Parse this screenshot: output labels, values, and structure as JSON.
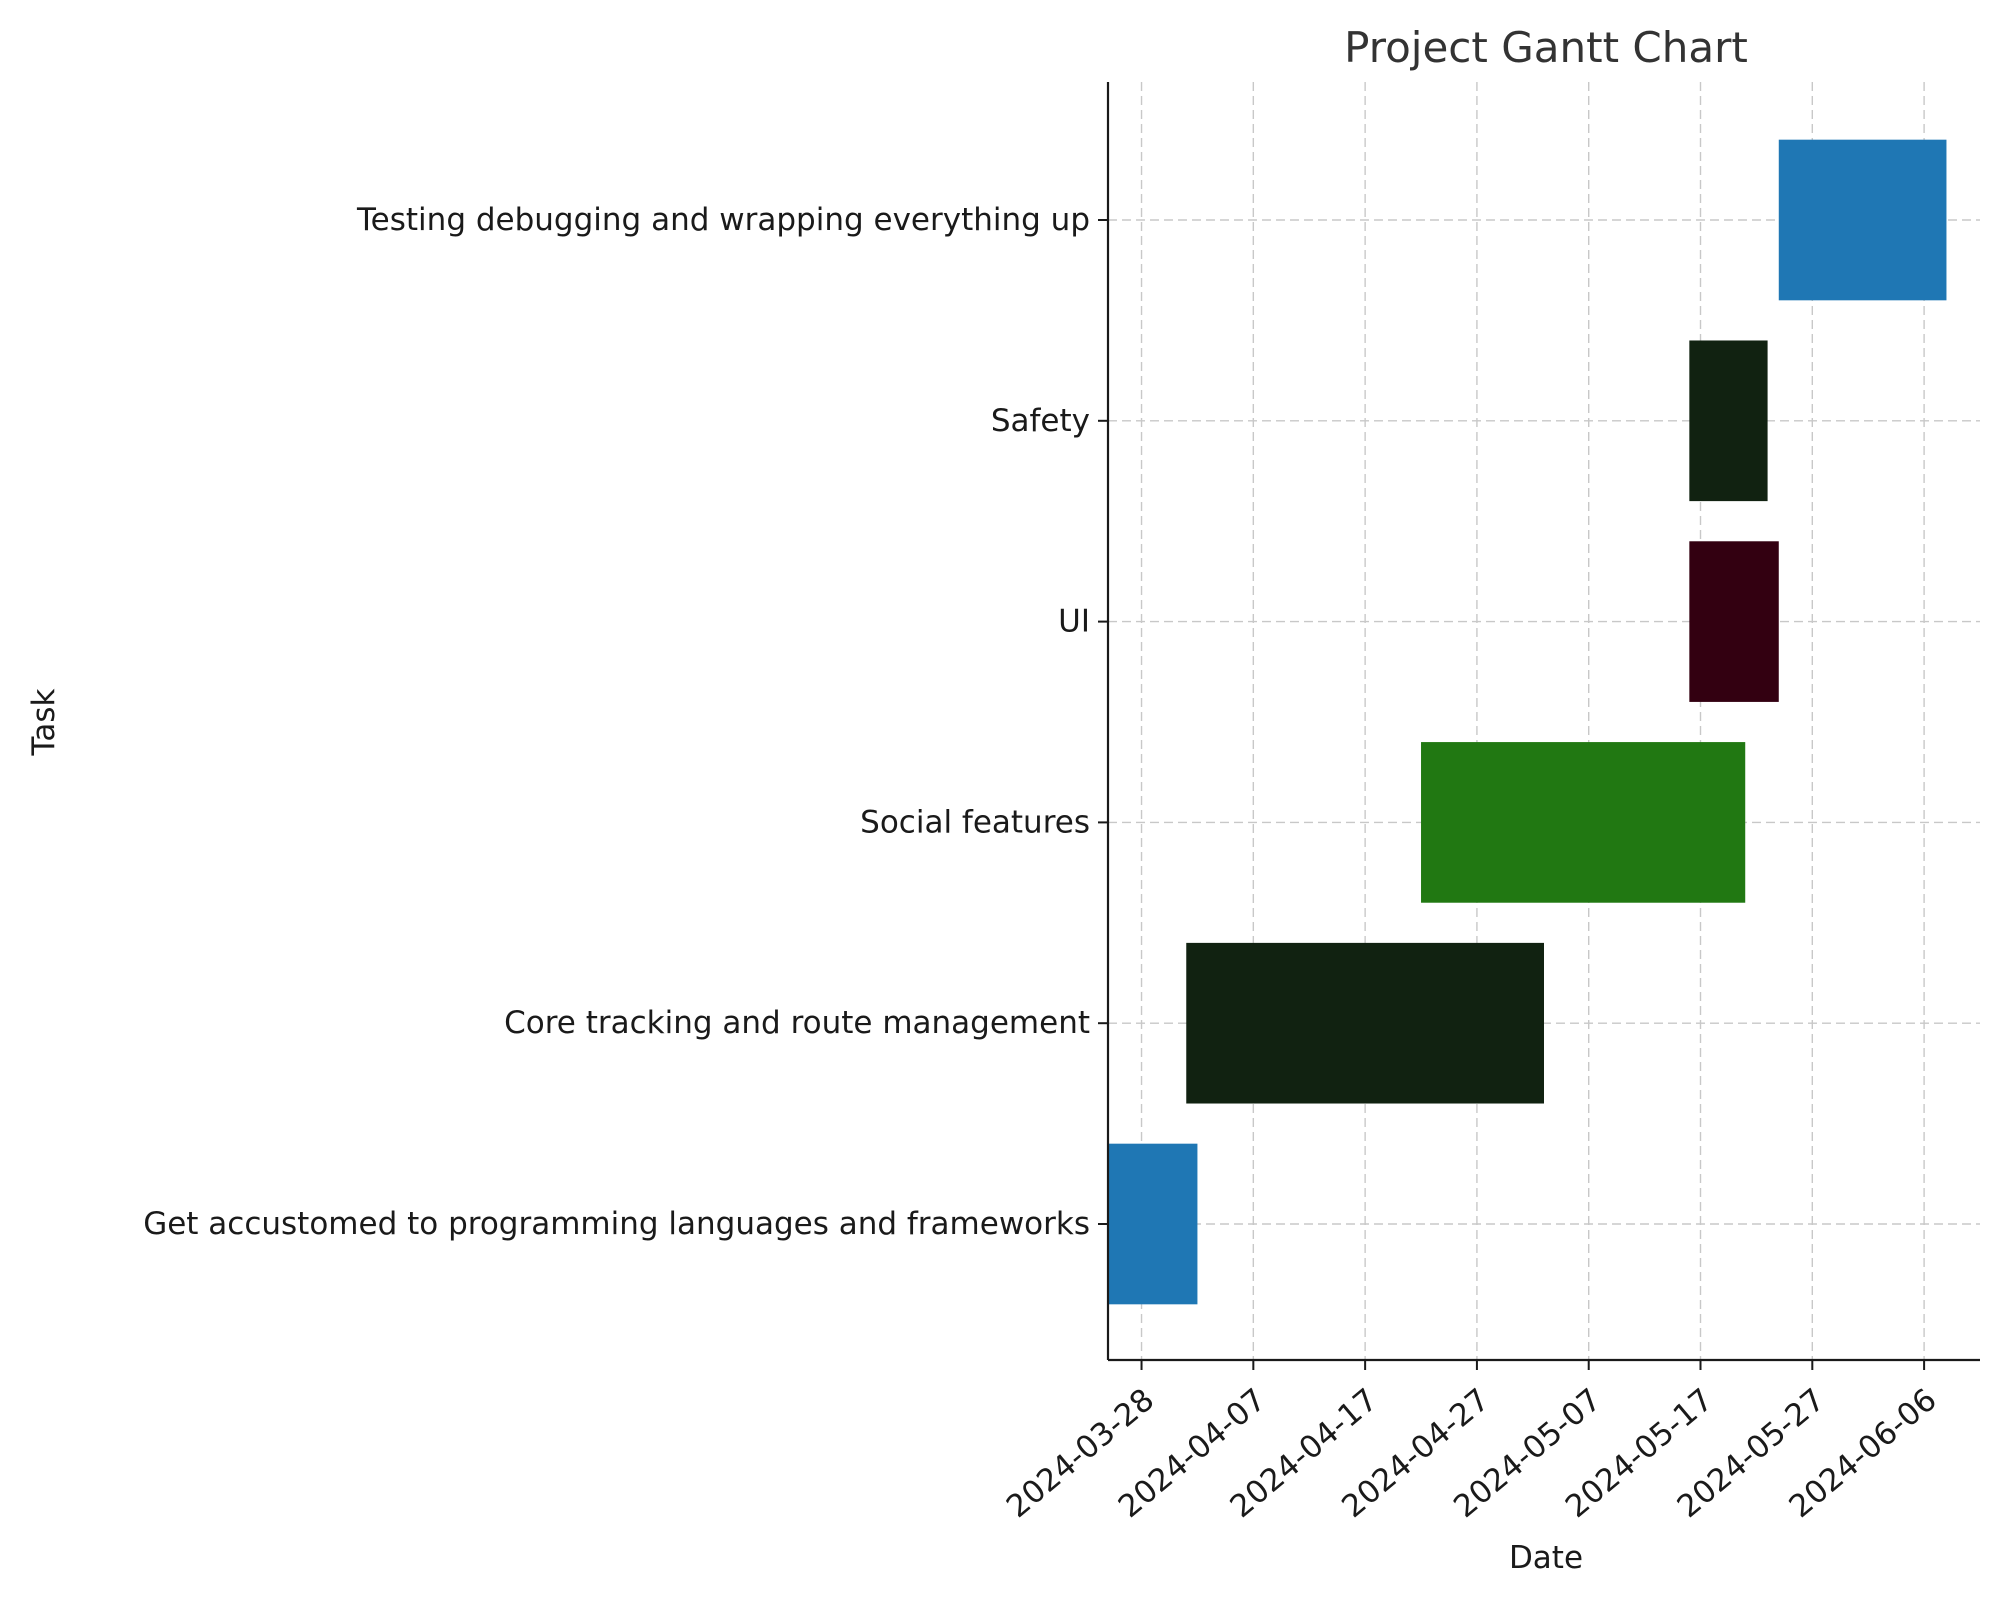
{
  "chart_data": {
    "type": "gantt",
    "title": "Project Gantt Chart",
    "xlabel": "Date",
    "ylabel": "Task",
    "grid": true,
    "x_ticks": [
      "2024-03-28",
      "2024-04-07",
      "2024-04-17",
      "2024-04-27",
      "2024-05-07",
      "2024-05-17",
      "2024-05-27",
      "2024-06-06"
    ],
    "xlim": [
      "2024-03-25",
      "2024-06-11"
    ],
    "tasks": [
      {
        "name": "Get accustomed to programming languages and frameworks",
        "start": "2024-03-25",
        "end": "2024-04-02",
        "color": "#1f77b4"
      },
      {
        "name": "Core tracking and route management",
        "start": "2024-04-01",
        "end": "2024-05-03",
        "color": "#112211"
      },
      {
        "name": "Social features ",
        "start": "2024-04-22",
        "end": "2024-05-21",
        "color": "#217812"
      },
      {
        "name": "UI",
        "start": "2024-05-16",
        "end": "2024-05-24",
        "color": "#330011"
      },
      {
        "name": "Safety",
        "start": "2024-05-16",
        "end": "2024-05-23",
        "color": "#112211"
      },
      {
        "name": "Testing debugging and wrapping everything up",
        "start": "2024-05-24",
        "end": "2024-06-08",
        "color": "#1f77b4"
      }
    ]
  }
}
